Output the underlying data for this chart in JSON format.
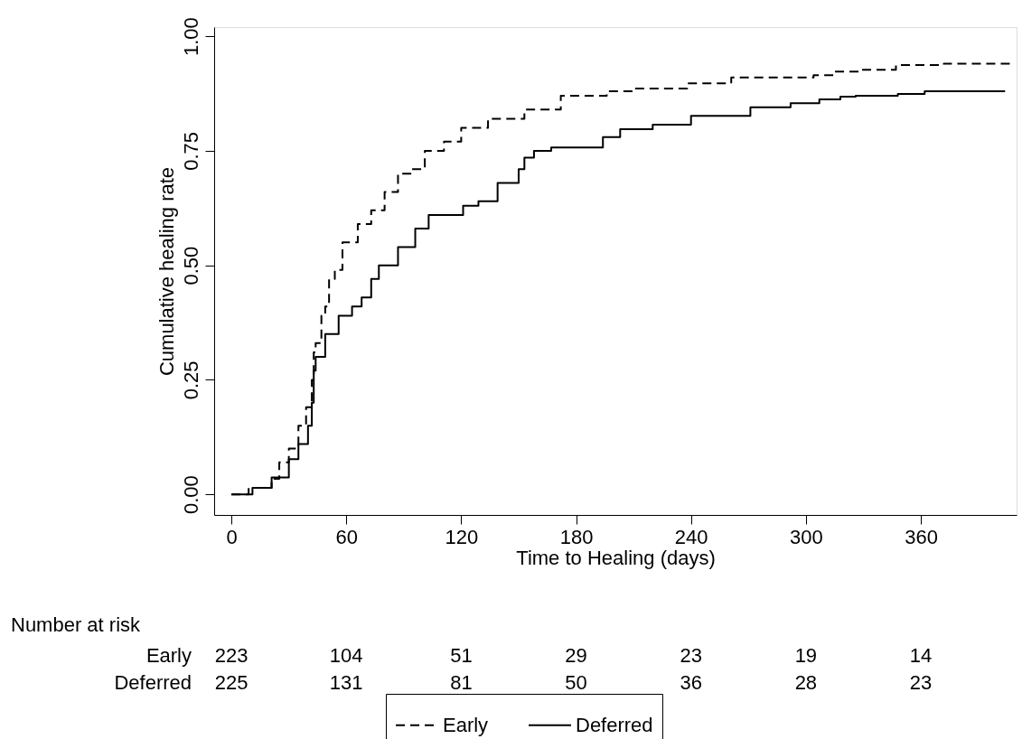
{
  "chart_data": {
    "type": "step",
    "xlabel": "Time to Healing (days)",
    "ylabel": "Cumulative healing rate",
    "xlim": [
      -9,
      410
    ],
    "ylim": [
      -0.045,
      1.02
    ],
    "xticks": [
      0,
      60,
      120,
      180,
      240,
      300,
      360
    ],
    "yticks": [
      {
        "value": 0,
        "label": "0.00"
      },
      {
        "value": 0.25,
        "label": "0.25"
      },
      {
        "value": 0.5,
        "label": "0.50"
      },
      {
        "value": 0.75,
        "label": "0.75"
      },
      {
        "value": 1,
        "label": "1.00"
      }
    ],
    "grid": false,
    "legend": "bottom",
    "series": [
      {
        "name": "Early",
        "color": "#000000",
        "line_style": "dashed",
        "x": [
          0,
          9,
          21,
          25,
          30,
          35,
          39,
          42,
          43,
          44,
          47,
          49,
          51,
          54,
          58,
          66,
          73,
          80,
          87,
          94,
          101,
          111,
          120,
          134,
          153,
          172,
          196,
          210,
          238,
          261,
          304,
          315,
          329,
          347,
          372,
          408
        ],
        "values": [
          0,
          0.014,
          0.034,
          0.07,
          0.1,
          0.15,
          0.19,
          0.25,
          0.31,
          0.33,
          0.39,
          0.41,
          0.47,
          0.49,
          0.55,
          0.59,
          0.62,
          0.66,
          0.7,
          0.71,
          0.75,
          0.77,
          0.8,
          0.82,
          0.84,
          0.87,
          0.88,
          0.886,
          0.897,
          0.91,
          0.915,
          0.923,
          0.927,
          0.937,
          0.94,
          0.94
        ]
      },
      {
        "name": "Deferred",
        "color": "#000000",
        "line_style": "solid",
        "x": [
          0,
          11,
          21,
          30,
          35,
          40,
          42,
          43,
          44,
          49,
          56,
          63,
          68,
          73,
          77,
          87,
          96,
          103,
          121,
          129,
          139,
          150,
          153,
          158,
          167,
          194,
          203,
          220,
          240,
          271,
          292,
          307,
          318,
          326,
          348,
          362,
          404
        ],
        "values": [
          0,
          0.014,
          0.037,
          0.077,
          0.11,
          0.15,
          0.2,
          0.27,
          0.3,
          0.35,
          0.39,
          0.41,
          0.43,
          0.47,
          0.5,
          0.54,
          0.58,
          0.61,
          0.63,
          0.64,
          0.68,
          0.71,
          0.735,
          0.75,
          0.757,
          0.78,
          0.797,
          0.807,
          0.826,
          0.845,
          0.854,
          0.862,
          0.868,
          0.87,
          0.874,
          0.88,
          0.88
        ]
      }
    ],
    "annotations": [
      "Number at risk",
      "Early",
      "223",
      "104",
      "51",
      "29",
      "23",
      "19",
      "14",
      "Deferred",
      "225",
      "131",
      "81",
      "50",
      "36",
      "28",
      "23"
    ]
  }
}
